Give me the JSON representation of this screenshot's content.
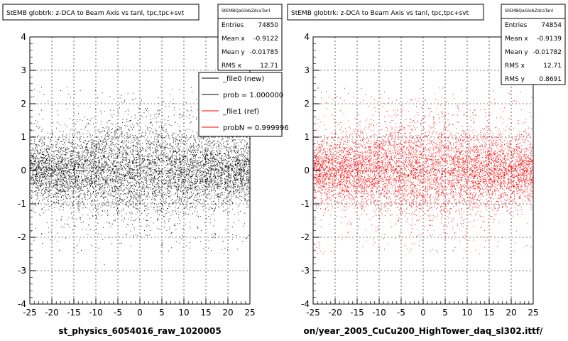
{
  "pads": [
    {
      "title": "StEMB globtrk: z-DCA to Beam Axis vs tanl, tpc,tpc+svt",
      "stats": {
        "name": "StEMBQaGlobZdcaTanl",
        "rows": [
          {
            "label": "Entries",
            "value": "74850"
          },
          {
            "label": "Mean x",
            "value": "-0.9122"
          },
          {
            "label": "Mean y",
            "value": "-0.01785"
          },
          {
            "label": "RMS x",
            "value": "12.71"
          }
        ]
      },
      "legend": [
        {
          "label": "_file0 (new)",
          "color": "#000000"
        },
        {
          "label": "prob = 1.000000",
          "color": "#000000"
        },
        {
          "label": "_file1 (ref)",
          "color": "#ff0000"
        },
        {
          "label": "probN = 0.999996",
          "color": "#ff0000"
        }
      ],
      "xaxis_caption": "st_physics_6054016_raw_1020005",
      "point_color": "#000000"
    },
    {
      "title": "StEMB globtrk: z-DCA to Beam Axis vs tanl, tpc,tpc+svt",
      "stats": {
        "name": "StEMBQaGlobZdcaTanl",
        "rows": [
          {
            "label": "Entries",
            "value": "74854"
          },
          {
            "label": "Mean x",
            "value": "-0.9139"
          },
          {
            "label": "Mean y",
            "value": "-0.01782"
          },
          {
            "label": "RMS x",
            "value": "12.71"
          },
          {
            "label": "RMS y",
            "value": "0.8691"
          }
        ]
      },
      "legend": [],
      "xaxis_caption": "on/year_2005_CuCu200_HighTower_daq_sl302.ittf/",
      "point_color": "#ff0000"
    }
  ],
  "chart_data": [
    {
      "type": "scatter",
      "title": "StEMB globtrk: z-DCA to Beam Axis vs tanl, tpc,tpc+svt",
      "xlim": [
        -25,
        25
      ],
      "ylim": [
        -4,
        4
      ],
      "xticks": [
        "-25",
        "-20",
        "-15",
        "-10",
        "-5",
        "0",
        "5",
        "10",
        "15",
        "20",
        "25"
      ],
      "yticks": [
        "-4",
        "-3",
        "-2",
        "-1",
        "0",
        "1",
        "2",
        "3",
        "4"
      ],
      "grid": true,
      "series": [
        {
          "name": "_file0 (new)",
          "color": "#000000",
          "entries": 74850,
          "mean_x": -0.9122,
          "mean_y": -0.01785,
          "rms_x": 12.71
        }
      ]
    },
    {
      "type": "scatter",
      "title": "StEMB globtrk: z-DCA to Beam Axis vs tanl, tpc,tpc+svt",
      "xlim": [
        -25,
        25
      ],
      "ylim": [
        -4,
        4
      ],
      "xticks": [
        "-25",
        "-20",
        "-15",
        "-10",
        "-5",
        "0",
        "5",
        "10",
        "15",
        "20",
        "25"
      ],
      "yticks": [
        "-4",
        "-3",
        "-2",
        "-1",
        "0",
        "1",
        "2",
        "3",
        "4"
      ],
      "grid": true,
      "series": [
        {
          "name": "_file1 (ref)",
          "color": "#ff0000",
          "entries": 74854,
          "mean_x": -0.9139,
          "mean_y": -0.01782,
          "rms_x": 12.71,
          "rms_y": 0.8691
        }
      ]
    }
  ]
}
